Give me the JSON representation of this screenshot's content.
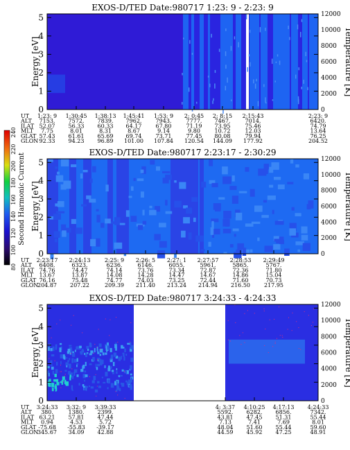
{
  "chart_data": [
    {
      "type": "heatmap",
      "title": "EXOS-D/TED   Date:980717  1:23: 9 - 2:23: 9",
      "ylabel": "Energy [eV]",
      "y2label": "Temperature [K]",
      "yticks": [
        "0",
        "1",
        "2",
        "3",
        "4",
        "5"
      ],
      "y2ticks": [
        "0",
        "2000",
        "4000",
        "6000",
        "8000",
        "10000",
        "12000"
      ],
      "ylim": [
        0,
        5.2
      ],
      "y2lim": [
        0,
        12000
      ],
      "table_rows": [
        "UT",
        "ALT",
        "ILAT",
        "MLT",
        "GLAT",
        "GLON"
      ],
      "columns": [
        [
          "1:23: 9",
          "7153.",
          "52.07",
          "7.75",
          "57.43",
          "92.33"
        ],
        [
          "1:30:45",
          "7572.",
          "56.33",
          "8.01",
          "61.61",
          "94.23"
        ],
        [
          "1:38:13",
          "7839.",
          "60.33",
          "8.31",
          "65.69",
          "96.89"
        ],
        [
          "1:45:41",
          "7962.",
          "64.17",
          "8.67",
          "69.74",
          "101.00"
        ],
        [
          "1:53: 9",
          "7943.",
          "67.80",
          "9.14",
          "73.71",
          "107.84"
        ],
        [
          "2: 0:45",
          "7777.",
          "71.19",
          "9.80",
          "77.45",
          "120.54"
        ],
        [
          "2: 8:15",
          "7467.",
          "73.95",
          "10.72",
          "80.08",
          "144.09"
        ],
        [
          "2:15:43",
          "7014.",
          "75.46",
          "12.03",
          "79.94",
          "177.92"
        ],
        [
          "2:23: 9",
          "6420.",
          "74.79",
          "13.64",
          "76.25",
          "204.52"
        ]
      ]
    },
    {
      "type": "heatmap",
      "title": "EXOS-D/TED   Date:980717  2:23:17 - 2:30:29",
      "ylabel": "Energy [eV]",
      "y2label": "Temperature [K]",
      "yticks": [
        "0",
        "1",
        "2",
        "3",
        "4",
        "5"
      ],
      "y2ticks": [
        "0",
        "2000",
        "4000",
        "6000",
        "8000",
        "10000",
        "12000"
      ],
      "ylim": [
        0,
        5.2
      ],
      "y2lim": [
        0,
        12000
      ],
      "table_rows": [
        "UT",
        "ALT",
        "ILAT",
        "MLT",
        "GLAT",
        "GLON"
      ],
      "columns": [
        [
          "2:23:17",
          "6408.",
          "74.76",
          "13.67",
          "76.16",
          "204.87"
        ],
        [
          "2:24:13",
          "6323.",
          "74.47",
          "13.87",
          "75.48",
          "207.22"
        ],
        [
          "2:25: 9",
          "6236.",
          "74.14",
          "14.08",
          "74.77",
          "209.39"
        ],
        [
          "2:26: 5",
          "6146.",
          "73.76",
          "14.28",
          "74.03",
          "211.40"
        ],
        [
          "2:27: 1",
          "6055.",
          "73.34",
          "14.47",
          "73.25",
          "213.24"
        ],
        [
          "2:27:57",
          "5961.",
          "72.87",
          "14.67",
          "72.44",
          "214.94"
        ],
        [
          "2:28:53",
          "5865.",
          "72.36",
          "14.86",
          "71.60",
          "216.50"
        ],
        [
          "2:29:49",
          "5767.",
          "71.80",
          "15.04",
          "70.73",
          "217.95"
        ]
      ]
    },
    {
      "type": "heatmap",
      "title": "EXOS-D/TED   Date:980717  3:24:33 - 4:24:33",
      "ylabel": "Energy [eV]",
      "y2label": "Temperature [K]",
      "yticks": [
        "0",
        "1",
        "2",
        "3",
        "4",
        "5"
      ],
      "y2ticks": [
        "0",
        "2000",
        "4000",
        "6000",
        "8000",
        "10000",
        "12000"
      ],
      "ylim": [
        0,
        5.2
      ],
      "y2lim": [
        0,
        12000
      ],
      "table_rows": [
        "UT",
        "ALT",
        "ILAT",
        "MLT",
        "GLAT",
        "GLON"
      ],
      "columns": [
        [
          "3:24:33",
          "380.",
          "63.21",
          "0.94",
          "-75.68",
          "345.67"
        ],
        [
          "3:32: 9",
          "1380.",
          "57.81",
          "4.53",
          "-55.83",
          "34.09"
        ],
        [
          "3:39:33",
          "2399.",
          "47.44",
          "5.72",
          "-39.17",
          "42.88"
        ],
        [
          "4: 3:37",
          "5592.",
          "43.81",
          "7.13",
          "48.04",
          "44.59"
        ],
        [
          "4:10:25",
          "6282.",
          "47.45",
          "7.41",
          "51.60",
          "45.92"
        ],
        [
          "4:17:13",
          "6856.",
          "51.31",
          "7.69",
          "55.44",
          "47.25"
        ],
        [
          "4:24:33",
          "7342.",
          "55.44",
          "8.01",
          "59.60",
          "48.91"
        ]
      ]
    }
  ],
  "colorbar": {
    "label": "Second Harmonic Current",
    "ticks": [
      "80",
      "100",
      "120",
      "140",
      "160",
      "180",
      "200",
      "220",
      "240"
    ]
  }
}
